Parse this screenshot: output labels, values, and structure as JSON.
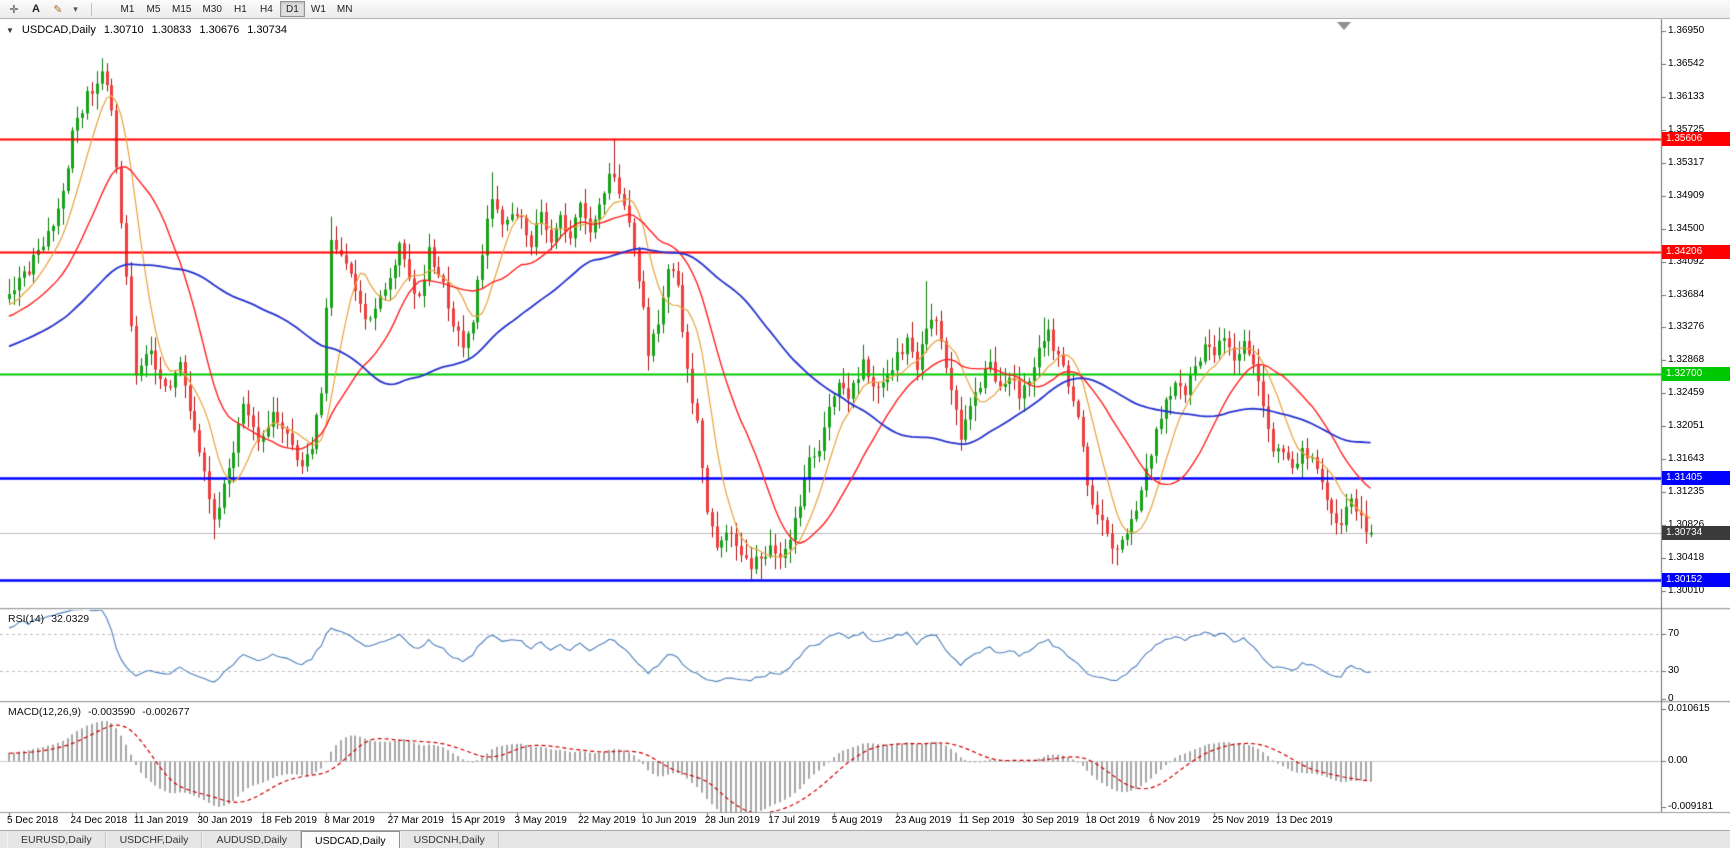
{
  "header": {
    "dropdown_arrow": "▼",
    "symbol_label": "USDCAD,Daily",
    "ohlc": {
      "open": "1.30710",
      "high": "1.30833",
      "low": "1.30676",
      "close": "1.30734"
    }
  },
  "toolbar": {
    "tools": [
      {
        "name": "crosshair-tool",
        "glyph": "✛"
      },
      {
        "name": "text-tool",
        "glyph": "A"
      },
      {
        "name": "arrow-objects-tool",
        "glyph": "✎"
      },
      {
        "name": "arrow-objects-dropdown",
        "glyph": "▾"
      }
    ],
    "periods": [
      "M1",
      "M5",
      "M15",
      "M30",
      "H1",
      "H4",
      "D1",
      "W1",
      "MN"
    ],
    "active_period": "D1"
  },
  "chart_data": {
    "type": "candlestick",
    "symbol": "USDCAD",
    "timeframe": "Daily",
    "title": "USDCAD,Daily",
    "current_bar": {
      "open": 1.3071,
      "high": 1.30833,
      "low": 1.30676,
      "close": 1.30734
    },
    "bars_visible": 280,
    "bars_per_time_label": 13,
    "price_axis": {
      "top": 1.3695,
      "bottom": 1.3001,
      "tick_labels": [
        "1.36950",
        "1.36542",
        "1.36133",
        "1.35725",
        "1.35317",
        "1.34909",
        "1.34500",
        "1.34092",
        "1.33684",
        "1.33276",
        "1.32868",
        "1.32459",
        "1.32051",
        "1.31643",
        "1.31235",
        "1.30826",
        "1.30418",
        "1.30010"
      ]
    },
    "time_axis_labels": [
      "5 Dec 2018",
      "24 Dec 2018",
      "11 Jan 2019",
      "30 Jan 2019",
      "18 Feb 2019",
      "8 Mar 2019",
      "27 Mar 2019",
      "15 Apr 2019",
      "3 May 2019",
      "22 May 2019",
      "10 Jun 2019",
      "28 Jun 2019",
      "17 Jul 2019",
      "5 Aug 2019",
      "23 Aug 2019",
      "11 Sep 2019",
      "30 Sep 2019",
      "18 Oct 2019",
      "6 Nov 2019",
      "25 Nov 2019",
      "13 Dec 2019"
    ],
    "close_path_anchors": [
      [
        0,
        1.3365
      ],
      [
        4,
        1.34
      ],
      [
        8,
        1.3445
      ],
      [
        11,
        1.349
      ],
      [
        13,
        1.357
      ],
      [
        16,
        1.3615
      ],
      [
        19,
        1.3645
      ],
      [
        21,
        1.3595
      ],
      [
        23,
        1.345
      ],
      [
        26,
        1.327
      ],
      [
        29,
        1.33
      ],
      [
        32,
        1.325
      ],
      [
        35,
        1.328
      ],
      [
        38,
        1.32
      ],
      [
        40,
        1.315
      ],
      [
        42,
        1.309
      ],
      [
        44,
        1.313
      ],
      [
        46,
        1.318
      ],
      [
        48,
        1.323
      ],
      [
        51,
        1.318
      ],
      [
        54,
        1.322
      ],
      [
        57,
        1.319
      ],
      [
        60,
        1.315
      ],
      [
        62,
        1.318
      ],
      [
        64,
        1.325
      ],
      [
        66,
        1.344
      ],
      [
        68,
        1.342
      ],
      [
        70,
        1.339
      ],
      [
        73,
        1.333
      ],
      [
        76,
        1.336
      ],
      [
        78,
        1.339
      ],
      [
        80,
        1.343
      ],
      [
        82,
        1.339
      ],
      [
        84,
        1.336
      ],
      [
        86,
        1.342
      ],
      [
        89,
        1.338
      ],
      [
        91,
        1.333
      ],
      [
        93,
        1.331
      ],
      [
        95,
        1.334
      ],
      [
        97,
        1.342
      ],
      [
        99,
        1.349
      ],
      [
        101,
        1.346
      ],
      [
        104,
        1.347
      ],
      [
        107,
        1.343
      ],
      [
        109,
        1.347
      ],
      [
        111,
        1.344
      ],
      [
        113,
        1.346
      ],
      [
        115,
        1.344
      ],
      [
        117,
        1.348
      ],
      [
        119,
        1.344
      ],
      [
        121,
        1.348
      ],
      [
        123,
        1.352
      ],
      [
        125,
        1.35
      ],
      [
        127,
        1.345
      ],
      [
        129,
        1.339
      ],
      [
        131,
        1.33
      ],
      [
        133,
        1.333
      ],
      [
        135,
        1.34
      ],
      [
        137,
        1.338
      ],
      [
        139,
        1.327
      ],
      [
        141,
        1.321
      ],
      [
        143,
        1.3095
      ],
      [
        145,
        1.306
      ],
      [
        147,
        1.308
      ],
      [
        150,
        1.305
      ],
      [
        152,
        1.3035
      ],
      [
        154,
        1.304
      ],
      [
        156,
        1.306
      ],
      [
        158,
        1.304
      ],
      [
        160,
        1.307
      ],
      [
        162,
        1.311
      ],
      [
        164,
        1.316
      ],
      [
        166,
        1.318
      ],
      [
        168,
        1.323
      ],
      [
        170,
        1.3255
      ],
      [
        172,
        1.324
      ],
      [
        175,
        1.328
      ],
      [
        178,
        1.325
      ],
      [
        180,
        1.327
      ],
      [
        182,
        1.329
      ],
      [
        184,
        1.331
      ],
      [
        186,
        1.328
      ],
      [
        188,
        1.332
      ],
      [
        190,
        1.334
      ],
      [
        192,
        1.328
      ],
      [
        195,
        1.319
      ],
      [
        197,
        1.323
      ],
      [
        199,
        1.326
      ],
      [
        201,
        1.328
      ],
      [
        203,
        1.325
      ],
      [
        205,
        1.327
      ],
      [
        207,
        1.324
      ],
      [
        209,
        1.326
      ],
      [
        211,
        1.33
      ],
      [
        213,
        1.332
      ],
      [
        215,
        1.329
      ],
      [
        217,
        1.326
      ],
      [
        219,
        1.322
      ],
      [
        221,
        1.313
      ],
      [
        223,
        1.31
      ],
      [
        225,
        1.307
      ],
      [
        227,
        1.305
      ],
      [
        229,
        1.307
      ],
      [
        231,
        1.31
      ],
      [
        233,
        1.315
      ],
      [
        235,
        1.32
      ],
      [
        237,
        1.324
      ],
      [
        239,
        1.326
      ],
      [
        241,
        1.325
      ],
      [
        243,
        1.328
      ],
      [
        245,
        1.33
      ],
      [
        247,
        1.33
      ],
      [
        249,
        1.331
      ],
      [
        251,
        1.329
      ],
      [
        253,
        1.331
      ],
      [
        255,
        1.328
      ],
      [
        257,
        1.323
      ],
      [
        259,
        1.318
      ],
      [
        261,
        1.3165
      ],
      [
        263,
        1.315
      ],
      [
        265,
        1.318
      ],
      [
        267,
        1.316
      ],
      [
        269,
        1.313
      ],
      [
        271,
        1.31
      ],
      [
        273,
        1.308
      ],
      [
        275,
        1.312
      ],
      [
        277,
        1.309
      ],
      [
        279,
        1.30734
      ]
    ],
    "wick_overrides": [
      [
        19,
        "high",
        1.366
      ],
      [
        20,
        "high",
        1.3655
      ],
      [
        42,
        "low",
        1.3065
      ],
      [
        66,
        "high",
        1.3465
      ],
      [
        99,
        "high",
        1.352
      ],
      [
        124,
        "high",
        1.35605
      ],
      [
        152,
        "low",
        1.3017
      ],
      [
        154,
        "low",
        1.3016
      ],
      [
        188,
        "high",
        1.3385
      ],
      [
        212,
        "high",
        1.334
      ],
      [
        227,
        "low",
        1.3039
      ],
      [
        278,
        "low",
        1.3066
      ]
    ],
    "pre_window": {
      "bars": 60,
      "from": 1.3235,
      "to": 1.336
    },
    "candle_colors": {
      "up_fill": "#17A317",
      "up_stroke": "#0A7A0A",
      "down_fill": "#EF3E3E",
      "down_stroke": "#B31212"
    },
    "moving_averages": [
      {
        "name": "ma-fast",
        "period": 8,
        "color": "#E8A33D",
        "width": 1.2
      },
      {
        "name": "ma-medium",
        "period": 20,
        "color": "#FF2020",
        "width": 1.4
      },
      {
        "name": "ma-slow",
        "period": 55,
        "color": "#2733CF",
        "width": 1.8
      }
    ],
    "horizontal_levels": [
      {
        "value": 1.35606,
        "label": "1.35606",
        "color": "#FF0000",
        "width": 2
      },
      {
        "value": 1.34206,
        "label": "1.34206",
        "color": "#FF0000",
        "width": 2
      },
      {
        "value": 1.327,
        "label": "1.32700",
        "color": "#00C800",
        "width": 2
      },
      {
        "value": 1.31405,
        "label": "1.31405",
        "color": "#0000FF",
        "width": 2.5
      },
      {
        "value": 1.30152,
        "label": "1.30152",
        "color": "#0000FF",
        "width": 2.5
      }
    ],
    "bid_line": {
      "value": 1.30734,
      "label": "1.30734",
      "line_color": "#BBBBBB",
      "badge_color": "#3A3A3A"
    },
    "rsi": {
      "label": "RSI(14)",
      "value_text": "32.0329",
      "period": 14,
      "levels": [
        70,
        30
      ],
      "scale_labels": [
        "70",
        "30",
        "0"
      ],
      "line_color": "#4F81BD",
      "level_color": "#C0C0C0"
    },
    "macd": {
      "label": "MACD(12,26,9)",
      "main_text": "-0.003590",
      "signal_text": "-0.002677",
      "fast": 12,
      "slow": 26,
      "signal": 9,
      "scale_max": 0.010615,
      "scale_min": -0.009181,
      "scale_labels": [
        "0.010615",
        "0.00",
        "-0.009181"
      ],
      "histogram_color": "#A8A8A8",
      "signal_color": "#D00000"
    }
  },
  "tabs": {
    "items": [
      "EURUSD,Daily",
      "USDCHF,Daily",
      "AUDUSD,Daily",
      "USDCAD,Daily",
      "USDCNH,Daily"
    ],
    "active": "USDCAD,Daily"
  }
}
